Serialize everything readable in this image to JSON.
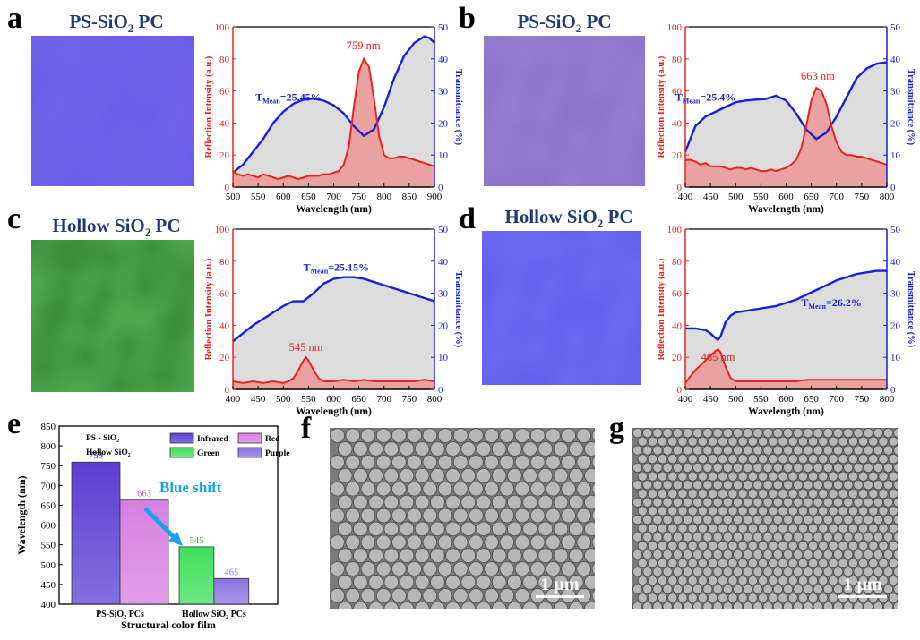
{
  "panels": {
    "a": {
      "letter": "a",
      "photo_title": "PS-SiO",
      "photo_title_sub": "2",
      "photo_title_tail": " PC",
      "photo_color": "#6a5ee8"
    },
    "b": {
      "letter": "b",
      "photo_title": "PS-SiO",
      "photo_title_sub": "2",
      "photo_title_tail": " PC",
      "photo_color": "#8d74cf"
    },
    "c": {
      "letter": "c",
      "photo_title": "Hollow SiO",
      "photo_title_sub": "2",
      "photo_title_tail": " PC",
      "photo_color": "#4da84a"
    },
    "d": {
      "letter": "d",
      "photo_title": "Hollow SiO",
      "photo_title_sub": "2",
      "photo_title_tail": " PC",
      "photo_color": "#6360ef"
    },
    "e": {
      "letter": "e"
    },
    "f": {
      "letter": "f",
      "scale_bar": "1 μm"
    },
    "g": {
      "letter": "g",
      "scale_bar": "1 μm"
    }
  },
  "colors": {
    "reflection": "#e8231f",
    "transmittance": "#1a1fd6",
    "fill_reflection": "#e9a2a0",
    "fill_transmittance": "#dcdcdc"
  },
  "chart_data": [
    {
      "id": "a",
      "type": "line",
      "xlabel": "Wavelength (nm)",
      "ylabel": "Reflection Intensity (a.u.)",
      "y2label": "Transmittance (%)",
      "xlim": [
        500,
        900
      ],
      "xticks": [
        500,
        550,
        600,
        650,
        700,
        750,
        800,
        850,
        900
      ],
      "ylim": [
        0,
        100
      ],
      "yticks": [
        0,
        20,
        40,
        60,
        80,
        100
      ],
      "y2lim": [
        0,
        50
      ],
      "y2ticks": [
        0,
        10,
        20,
        30,
        40,
        50
      ],
      "peak_label": "759 nm",
      "peak_x": 759,
      "peak_label_y": 86,
      "mean_label": "T",
      "mean_sub": "Mean",
      "mean_value": "=25.45%",
      "mean_x": 610,
      "mean_y": 27,
      "reflection": {
        "x": [
          500,
          510,
          520,
          530,
          540,
          550,
          560,
          570,
          580,
          590,
          600,
          610,
          620,
          630,
          640,
          650,
          660,
          670,
          680,
          690,
          700,
          710,
          720,
          730,
          740,
          750,
          760,
          770,
          780,
          790,
          800,
          810,
          820,
          830,
          840,
          850,
          860,
          870,
          880,
          890,
          900
        ],
        "y": [
          10,
          8,
          7,
          8,
          7,
          6,
          8,
          7,
          6,
          5,
          6,
          7,
          6,
          5,
          6,
          7,
          7,
          7,
          8,
          8,
          9,
          10,
          14,
          25,
          50,
          72,
          80,
          75,
          55,
          32,
          20,
          18,
          18,
          19,
          19,
          18,
          17,
          16,
          15,
          14,
          13
        ]
      },
      "transmittance": {
        "x": [
          500,
          520,
          540,
          560,
          580,
          600,
          620,
          640,
          660,
          680,
          700,
          720,
          740,
          760,
          780,
          800,
          820,
          840,
          860,
          880,
          890,
          900
        ],
        "y": [
          4.5,
          7,
          11,
          15,
          20,
          23.5,
          26,
          27.3,
          27.6,
          27,
          25.5,
          23,
          19,
          16,
          18,
          25,
          34,
          41,
          45,
          47,
          46.5,
          45
        ]
      }
    },
    {
      "id": "b",
      "type": "line",
      "xlabel": "Wavelength (nm)",
      "ylabel": "Reflection Intensity (a.u.)",
      "y2label": "Transmittance (%)",
      "xlim": [
        400,
        800
      ],
      "xticks": [
        400,
        450,
        500,
        550,
        600,
        650,
        700,
        750,
        800
      ],
      "ylim": [
        0,
        100
      ],
      "yticks": [
        0,
        20,
        40,
        60,
        80,
        100
      ],
      "y2lim": [
        0,
        50
      ],
      "y2ticks": [
        0,
        10,
        20,
        30,
        40,
        50
      ],
      "peak_label": "663 nm",
      "peak_x": 663,
      "peak_label_y": 67,
      "mean_label": "T",
      "mean_sub": "Mean",
      "mean_value": "=25.4%",
      "mean_x": 440,
      "mean_y": 27,
      "reflection": {
        "x": [
          400,
          410,
          420,
          430,
          440,
          450,
          460,
          470,
          480,
          490,
          500,
          510,
          520,
          530,
          540,
          550,
          560,
          570,
          580,
          590,
          600,
          610,
          620,
          630,
          640,
          650,
          660,
          670,
          680,
          690,
          700,
          710,
          720,
          730,
          740,
          750,
          760,
          770,
          780,
          790,
          800
        ],
        "y": [
          17,
          17,
          16,
          14,
          15,
          13,
          13,
          13,
          12,
          11,
          12,
          12,
          11,
          12,
          11,
          10,
          10,
          11,
          10,
          11,
          12,
          14,
          17,
          24,
          38,
          54,
          62,
          60,
          52,
          38,
          28,
          22,
          20,
          20,
          19,
          19,
          18,
          17,
          16,
          15,
          14
        ]
      },
      "transmittance": {
        "x": [
          400,
          420,
          440,
          460,
          480,
          500,
          520,
          540,
          560,
          580,
          600,
          620,
          640,
          660,
          680,
          700,
          720,
          740,
          760,
          780,
          800
        ],
        "y": [
          11,
          19,
          22,
          23.5,
          25,
          26.5,
          27,
          27.3,
          27.5,
          28.5,
          27,
          23,
          18,
          15,
          17,
          22,
          28,
          34,
          37,
          38.5,
          39
        ]
      }
    },
    {
      "id": "c",
      "type": "line",
      "xlabel": "Wavelength (nm)",
      "ylabel": "Reflection Intensity (a.u.)",
      "y2label": "Transmittance (%)",
      "xlim": [
        400,
        800
      ],
      "xticks": [
        400,
        450,
        500,
        550,
        600,
        650,
        700,
        750,
        800
      ],
      "ylim": [
        0,
        100
      ],
      "yticks": [
        0,
        20,
        40,
        60,
        80,
        100
      ],
      "y2lim": [
        0,
        50
      ],
      "y2ticks": [
        0,
        10,
        20,
        30,
        40,
        50
      ],
      "peak_label": "545 nm",
      "peak_x": 545,
      "peak_label_y": 24,
      "mean_label": "T",
      "mean_sub": "Mean",
      "mean_value": "=25.15%",
      "mean_x": 605,
      "mean_y": 37,
      "reflection": {
        "x": [
          400,
          420,
          440,
          460,
          480,
          500,
          510,
          520,
          530,
          540,
          545,
          550,
          560,
          570,
          580,
          600,
          620,
          640,
          660,
          680,
          700,
          720,
          740,
          760,
          780,
          800
        ],
        "y": [
          5,
          4,
          5,
          4,
          5,
          4,
          5,
          7,
          12,
          18,
          20,
          18,
          12,
          7,
          5,
          5,
          6,
          5,
          6,
          5,
          5,
          5,
          5,
          5,
          6,
          5
        ]
      },
      "transmittance": {
        "x": [
          400,
          420,
          440,
          460,
          480,
          500,
          520,
          540,
          560,
          580,
          600,
          620,
          640,
          660,
          680,
          700,
          720,
          740,
          760,
          780,
          800
        ],
        "y": [
          15,
          17.5,
          20,
          22,
          24,
          26,
          27.5,
          27.5,
          30,
          33,
          34.5,
          35,
          35,
          34.5,
          33.5,
          32.5,
          31.5,
          30.5,
          29.5,
          28.5,
          27.5
        ]
      }
    },
    {
      "id": "d",
      "type": "line",
      "xlabel": "Wavelength (nm)",
      "ylabel": "Reflection Intensity (a.u.)",
      "y2label": "Transmittance (%)",
      "xlim": [
        400,
        800
      ],
      "xticks": [
        400,
        450,
        500,
        550,
        600,
        650,
        700,
        750,
        800
      ],
      "ylim": [
        0,
        100
      ],
      "yticks": [
        0,
        20,
        40,
        60,
        80,
        100
      ],
      "y2lim": [
        0,
        50
      ],
      "y2ticks": [
        0,
        10,
        20,
        30,
        40,
        50
      ],
      "peak_label": "465 nm",
      "peak_x": 465,
      "peak_label_y": 18,
      "mean_label": "T",
      "mean_sub": "Mean",
      "mean_value": "=26.2%",
      "mean_x": 690,
      "mean_y": 26,
      "reflection": {
        "x": [
          400,
          410,
          420,
          430,
          440,
          450,
          460,
          465,
          470,
          480,
          490,
          500,
          520,
          540,
          560,
          580,
          600,
          620,
          640,
          660,
          680,
          700,
          720,
          740,
          760,
          780,
          800
        ],
        "y": [
          4,
          8,
          12,
          15,
          18,
          21,
          24,
          25,
          23,
          14,
          7,
          5,
          5,
          5,
          5,
          5,
          5,
          5,
          6,
          6,
          6,
          6,
          6,
          6,
          6,
          6,
          6
        ]
      },
      "transmittance": {
        "x": [
          400,
          420,
          440,
          450,
          460,
          465,
          470,
          480,
          490,
          500,
          520,
          540,
          560,
          580,
          600,
          620,
          640,
          660,
          680,
          700,
          720,
          740,
          760,
          780,
          800
        ],
        "y": [
          19,
          19,
          18.5,
          17.5,
          16,
          15.5,
          16.5,
          21,
          23,
          24,
          24.5,
          25,
          25.5,
          26,
          27,
          28,
          29.5,
          31,
          32.5,
          34,
          35,
          36,
          36.5,
          37,
          37
        ]
      }
    },
    {
      "id": "e",
      "type": "bar",
      "xlabel": "Structural color film",
      "ylabel": "Wavelength (nm)",
      "ylim": [
        400,
        850
      ],
      "yticks": [
        400,
        450,
        500,
        550,
        600,
        650,
        700,
        750,
        800,
        850
      ],
      "categories": [
        "PS-SiO₂ PCs",
        "Hollow SiO₂ PCs"
      ],
      "bars": [
        {
          "category": "PS-SiO₂ PCs",
          "name": "Infrared",
          "value": 759,
          "color": "#5b3fd2",
          "label_color": "#3b2aa0"
        },
        {
          "category": "PS-SiO₂ PCs",
          "name": "Red",
          "value": 663,
          "color": "#d77fe0",
          "label_color": "#c85ed6"
        },
        {
          "category": "Hollow SiO₂ PCs",
          "name": "Green",
          "value": 545,
          "color": "#3ee05a",
          "label_color": "#2cb93f"
        },
        {
          "category": "Hollow SiO₂ PCs",
          "name": "Purple",
          "value": 465,
          "color": "#8a73e0",
          "label_color": "#a57ad8"
        }
      ],
      "legend_groups": [
        "PS - SiO₂",
        "Hollow SiO₂"
      ],
      "legend_items": [
        "Infrared",
        "Red",
        "Green",
        "Purple"
      ],
      "annotation": "Blue shift"
    }
  ]
}
